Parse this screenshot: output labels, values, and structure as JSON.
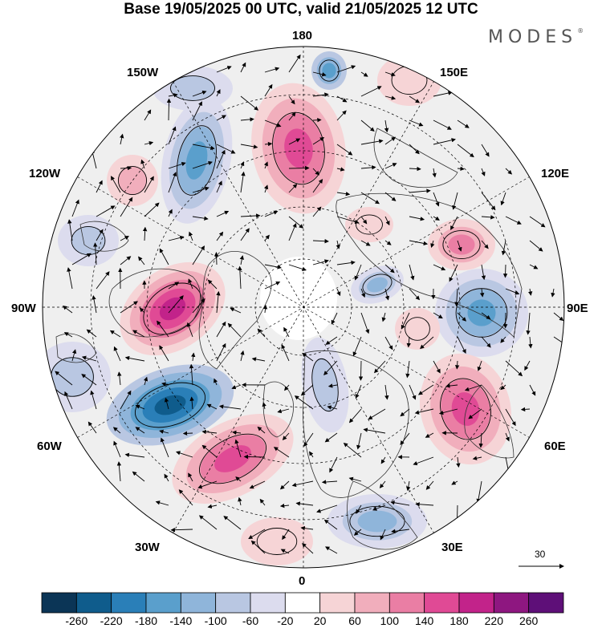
{
  "title": "Base 19/05/2025 00 UTC, valid 21/05/2025 12 UTC",
  "brand": {
    "name": "MODES",
    "mark": "®"
  },
  "longitude_labels": {
    "top": "180",
    "bottom": "0",
    "left": "90W",
    "right": "90E",
    "upper_left_outer": "150W",
    "upper_right_outer": "150E",
    "upper_left_inner": "120W",
    "upper_right_inner": "120E",
    "lower_left_inner": "60W",
    "lower_right_inner": "60E",
    "lower_left_outer": "30W",
    "lower_right_outer": "30E"
  },
  "reference_vector": {
    "value": "30"
  },
  "colorbar": {
    "tick_labels": [
      "-260",
      "-220",
      "-180",
      "-140",
      "-100",
      "-60",
      "-20",
      "20",
      "60",
      "100",
      "140",
      "180",
      "220",
      "260"
    ],
    "colors": [
      "#0b3556",
      "#0f5c8c",
      "#2a7fb8",
      "#5a9fcc",
      "#8fb5da",
      "#b9c7e2",
      "#dcdcee",
      "#ffffff",
      "#f6d4d6",
      "#f1aebc",
      "#ea7ea4",
      "#e04a95",
      "#c2238a",
      "#8e1780",
      "#5e0f78"
    ]
  },
  "map": {
    "projection": "north-polar-stereographic",
    "field": "geopotential-height-anomaly",
    "contour_lines": true,
    "wind_vectors": true
  }
}
